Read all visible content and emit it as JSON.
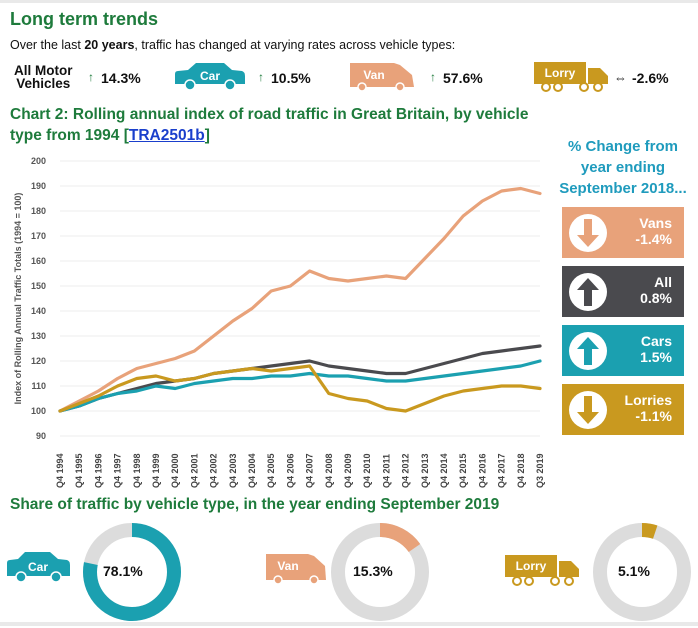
{
  "header": {
    "title": "Long term trends",
    "subtitle_pre": "Over the last ",
    "subtitle_bold": "20 years",
    "subtitle_post": ", traffic has changed at varying rates across vehicle types:"
  },
  "summary": {
    "all_label_1": "All Motor",
    "all_label_2": "Vehicles",
    "all_value": "14.3%",
    "car_badge": "Car",
    "car_value": "10.5%",
    "van_badge": "Van",
    "van_value": "57.6%",
    "lorry_badge": "Lorry",
    "lorry_value": "-2.6%"
  },
  "chart_heading": {
    "text": "Chart 2: Rolling annual index of road traffic in Great Britain, by vehicle type from 1994 [",
    "link": "TRA2501b",
    "close": "]"
  },
  "change_panel": {
    "heading": "% Change from year ending September 2018...",
    "items": [
      {
        "name": "Vans",
        "value": "-1.4%",
        "direction": "down",
        "color": "#e8a27a"
      },
      {
        "name": "All",
        "value": "0.8%",
        "direction": "up",
        "color": "#4a4a4e"
      },
      {
        "name": "Cars",
        "value": "1.5%",
        "direction": "up",
        "color": "#1ba0b0"
      },
      {
        "name": "Lorries",
        "value": "-1.1%",
        "direction": "down",
        "color": "#c9991f"
      }
    ]
  },
  "chart_data": {
    "type": "line",
    "ylabel": "Index of Rolling Annual Traffic Totals (1994 = 100)",
    "ylim": [
      90,
      200
    ],
    "yticks": [
      90,
      100,
      110,
      120,
      130,
      140,
      150,
      160,
      170,
      180,
      190,
      200
    ],
    "x_tick_labels": [
      "Q4 1994",
      "Q4 1995",
      "Q4 1996",
      "Q4 1997",
      "Q4 1998",
      "Q4 1999",
      "Q4 2000",
      "Q4 2001",
      "Q4 2002",
      "Q4 2003",
      "Q4 2004",
      "Q4 2005",
      "Q4 2006",
      "Q4 2007",
      "Q4 2008",
      "Q4 2009",
      "Q4 2010",
      "Q4 2011",
      "Q4 2012",
      "Q4 2013",
      "Q4 2014",
      "Q4 2015",
      "Q4 2016",
      "Q4 2017",
      "Q4 2018",
      "Q3 2019"
    ],
    "x": [
      1994,
      1995,
      1996,
      1997,
      1998,
      1999,
      2000,
      2001,
      2002,
      2003,
      2004,
      2005,
      2006,
      2007,
      2008,
      2009,
      2010,
      2011,
      2012,
      2013,
      2014,
      2015,
      2016,
      2017,
      2018,
      2019
    ],
    "series": [
      {
        "name": "Vans",
        "color": "#e8a27a",
        "values": [
          100,
          104,
          108,
          113,
          117,
          119,
          121,
          124,
          130,
          136,
          141,
          148,
          150,
          156,
          153,
          152,
          153,
          154,
          153,
          161,
          169,
          178,
          184,
          188,
          189,
          187
        ]
      },
      {
        "name": "All",
        "color": "#4a4a4e",
        "values": [
          100,
          102,
          105,
          107,
          109,
          111,
          112,
          113,
          115,
          116,
          117,
          118,
          119,
          120,
          118,
          117,
          116,
          115,
          115,
          117,
          119,
          121,
          123,
          124,
          125,
          126
        ]
      },
      {
        "name": "Cars",
        "color": "#1ba0b0",
        "values": [
          100,
          102,
          105,
          107,
          108,
          110,
          109,
          111,
          112,
          113,
          113,
          114,
          114,
          115,
          114,
          114,
          113,
          112,
          112,
          113,
          114,
          115,
          116,
          117,
          118,
          120
        ]
      },
      {
        "name": "Lorries",
        "color": "#c9991f",
        "values": [
          100,
          103,
          106,
          110,
          113,
          114,
          112,
          113,
          115,
          116,
          117,
          116,
          117,
          118,
          107,
          105,
          104,
          101,
          100,
          103,
          106,
          108,
          109,
          110,
          110,
          109
        ]
      }
    ]
  },
  "share": {
    "title": "Share of traffic by vehicle type, in the year ending September 2019",
    "items": [
      {
        "badge": "Car",
        "value": "78.1%",
        "fraction": 0.781,
        "color": "#1ba0b0"
      },
      {
        "badge": "Van",
        "value": "15.3%",
        "fraction": 0.153,
        "color": "#e8a27a"
      },
      {
        "badge": "Lorry",
        "value": "5.1%",
        "fraction": 0.051,
        "color": "#c9991f"
      }
    ]
  }
}
